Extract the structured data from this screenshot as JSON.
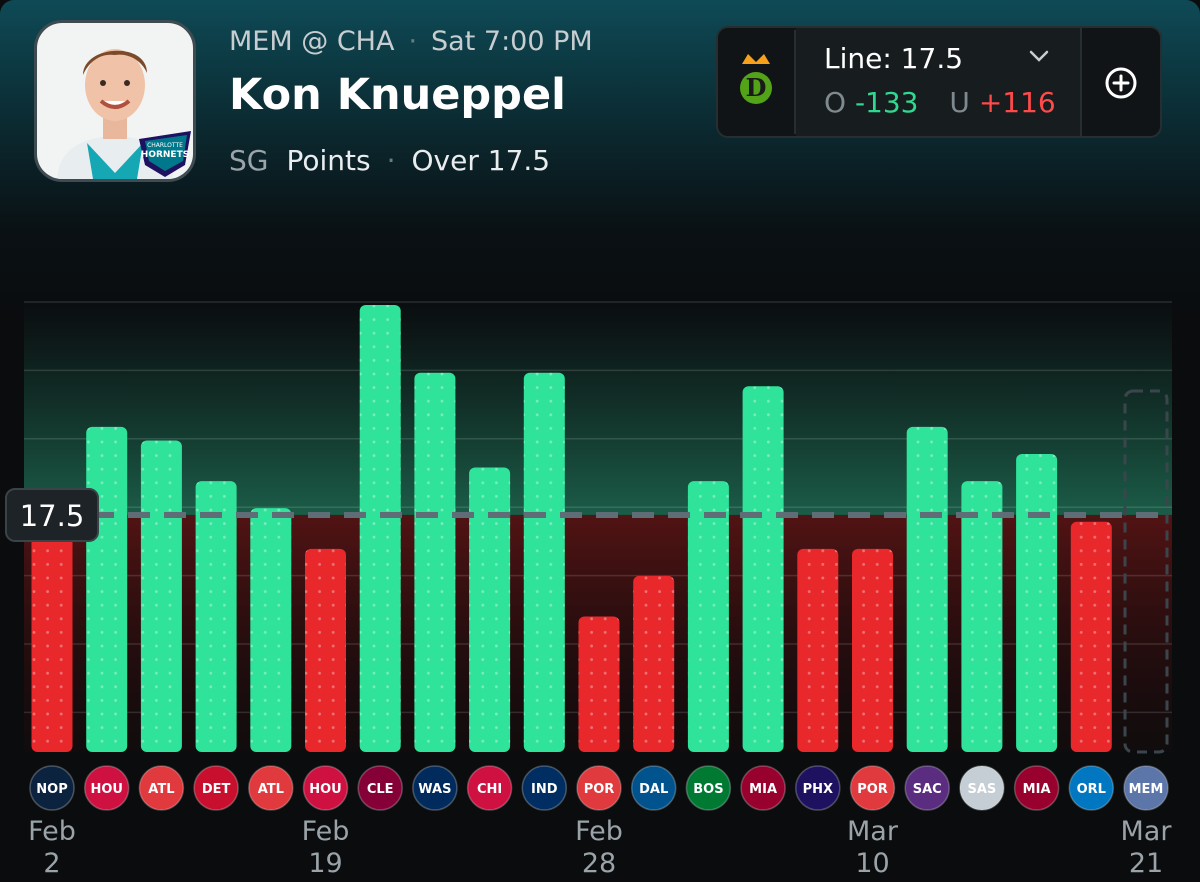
{
  "header": {
    "matchup": "MEM @ CHA",
    "game_time": "Sat 7:00 PM",
    "player_name": "Kon Knueppel",
    "position": "SG",
    "stat": "Points",
    "pick": "Over 17.5",
    "team_logo_text_small": "CHARLOTTE",
    "team_logo_text": "HORNETS"
  },
  "line_box": {
    "book_icon": "draftkings-logo",
    "line_label": "Line: 17.5",
    "over_label": "O",
    "over_odds": "-133",
    "under_label": "U",
    "under_odds": "+116",
    "add_icon": "plus-circle-icon"
  },
  "colors": {
    "over": "#2fe39a",
    "under": "#e8282b",
    "over_text": "#2fd98f",
    "under_text": "#ff4a4a",
    "line": "#5f6e76"
  },
  "chart_data": {
    "type": "bar",
    "line_value": 17.5,
    "line_label": "17.5",
    "ylim": [
      0,
      33
    ],
    "grid": true,
    "values": [
      16,
      24,
      23,
      20,
      18,
      15,
      33,
      28,
      21,
      28,
      10,
      13,
      20,
      27,
      15,
      15,
      24,
      20,
      22,
      17
    ],
    "opponents": [
      {
        "abbr": "NOP",
        "color": "#0c2340"
      },
      {
        "abbr": "HOU",
        "color": "#ce1141"
      },
      {
        "abbr": "ATL",
        "color": "#e03a3e"
      },
      {
        "abbr": "DET",
        "color": "#c8102e"
      },
      {
        "abbr": "ATL",
        "color": "#e03a3e"
      },
      {
        "abbr": "HOU",
        "color": "#ce1141"
      },
      {
        "abbr": "CLE",
        "color": "#860038"
      },
      {
        "abbr": "WAS",
        "color": "#002b5c"
      },
      {
        "abbr": "CHI",
        "color": "#ce1141"
      },
      {
        "abbr": "IND",
        "color": "#002d62"
      },
      {
        "abbr": "POR",
        "color": "#e03a3e"
      },
      {
        "abbr": "DAL",
        "color": "#00538c"
      },
      {
        "abbr": "BOS",
        "color": "#007a33"
      },
      {
        "abbr": "MIA",
        "color": "#98002e"
      },
      {
        "abbr": "PHX",
        "color": "#1d1160"
      },
      {
        "abbr": "POR",
        "color": "#e03a3e"
      },
      {
        "abbr": "SAC",
        "color": "#5a2d81"
      },
      {
        "abbr": "SAS",
        "color": "#c4ced4"
      },
      {
        "abbr": "MIA",
        "color": "#98002e"
      },
      {
        "abbr": "ORL",
        "color": "#0077c0"
      },
      {
        "abbr": "MEM",
        "color": "#5d76a9"
      }
    ],
    "x_labels": [
      {
        "month": "Feb",
        "day": "2",
        "index": 0
      },
      {
        "month": "Feb",
        "day": "19",
        "index": 5
      },
      {
        "month": "Feb",
        "day": "28",
        "index": 10
      },
      {
        "month": "Mar",
        "day": "10",
        "index": 15
      },
      {
        "month": "Mar",
        "day": "21",
        "index": 20
      }
    ]
  }
}
